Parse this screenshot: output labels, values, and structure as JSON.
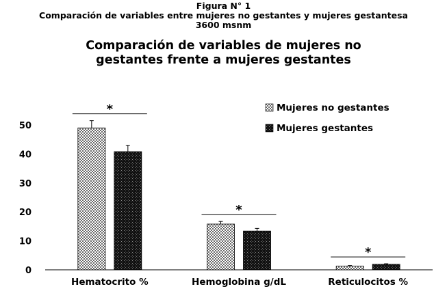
{
  "figure": {
    "label": "Figura N° 1",
    "caption_line1": "Comparación de variables entre mujeres no gestantes y mujeres gestantesa",
    "caption_line2": "3600 msnm"
  },
  "chart_data": {
    "type": "bar",
    "title_line1": "Comparación de variables de mujeres no",
    "title_line2": "gestantes frente a mujeres gestantes",
    "categories": [
      "Hematocrito %",
      "Hemoglobina  g/dL",
      "Reticulocitos %"
    ],
    "series": [
      {
        "name": "Mujeres no gestantes",
        "values": [
          49.0,
          15.8,
          1.3
        ],
        "errors": [
          2.5,
          0.9,
          0.2
        ],
        "fill": "checkered"
      },
      {
        "name": "Mujeres gestantes",
        "values": [
          40.8,
          13.4,
          1.9
        ],
        "errors": [
          2.2,
          0.9,
          0.2
        ],
        "fill": "dark-stipple"
      }
    ],
    "significance": [
      "*",
      "*",
      "*"
    ],
    "ylim": [
      0,
      50
    ],
    "yticks": [
      "0",
      "10",
      "20",
      "30",
      "40",
      "50"
    ],
    "legend_position": "top-right",
    "grid": false
  }
}
